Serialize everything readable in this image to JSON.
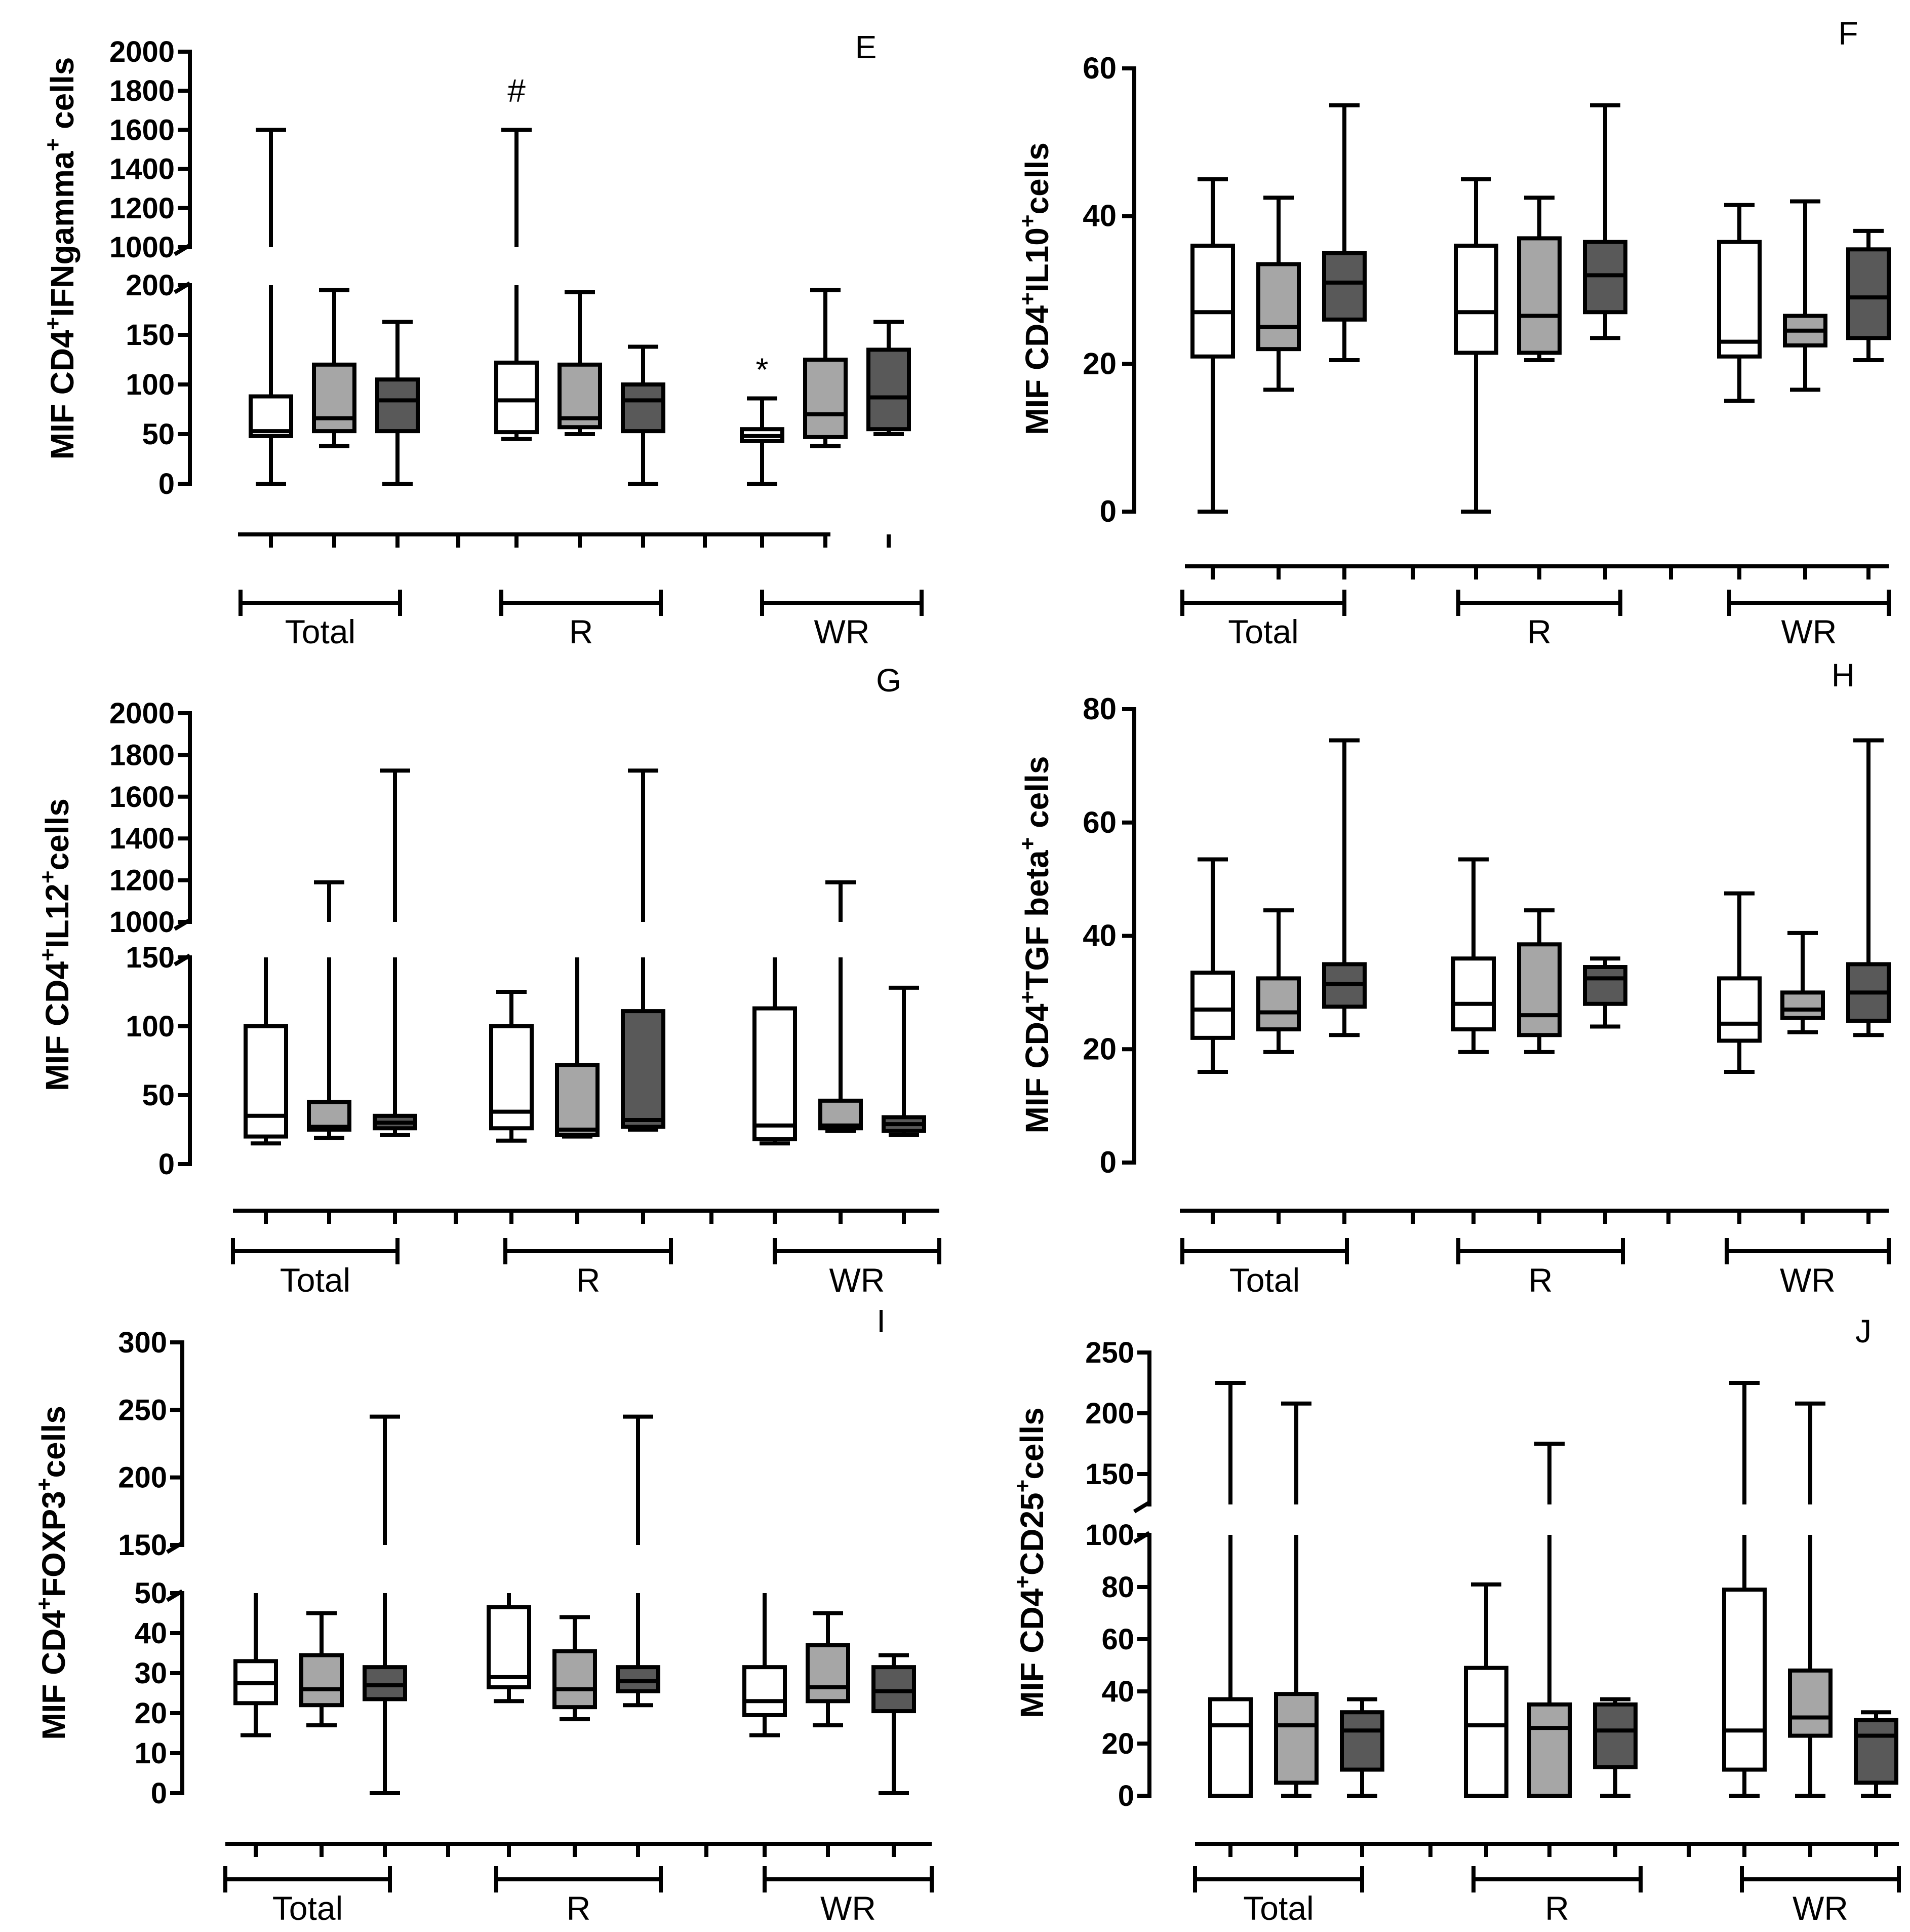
{
  "figure": {
    "colors": {
      "white_box": "#ffffff",
      "gray_box": "#a6a6a6",
      "dark_box": "#595959",
      "line": "#000000"
    },
    "group_labels": [
      "Total",
      "R",
      "WR"
    ],
    "box_fills": [
      "white",
      "gray",
      "dark"
    ]
  },
  "chart_data": [
    {
      "type": "box",
      "panel_letter": "E",
      "ylabel_parts": [
        "MIF CD4",
        "+",
        "IFNgamma",
        "+",
        " cells"
      ],
      "y_broken": true,
      "lower_range": [
        0,
        200
      ],
      "lower_ticks": [
        0,
        50,
        100,
        150,
        200
      ],
      "upper_range": [
        1000,
        2000
      ],
      "upper_ticks": [
        1000,
        1200,
        1400,
        1600,
        1800,
        2000
      ],
      "groups": [
        "Total",
        "R",
        "WR"
      ],
      "boxes": [
        {
          "group": "Total",
          "fill": "white",
          "min": 0,
          "q1": 48,
          "median": 53,
          "q3": 88,
          "max": 1600
        },
        {
          "group": "Total",
          "fill": "gray",
          "min": 38,
          "q1": 53,
          "median": 66,
          "q3": 120,
          "max": 195
        },
        {
          "group": "Total",
          "fill": "dark",
          "min": 0,
          "q1": 53,
          "median": 84,
          "q3": 105,
          "max": 163
        },
        {
          "group": "R",
          "fill": "white",
          "min": 45,
          "q1": 52,
          "median": 84,
          "q3": 122,
          "max": 1600
        },
        {
          "group": "R",
          "fill": "gray",
          "min": 50,
          "q1": 57,
          "median": 66,
          "q3": 120,
          "max": 193
        },
        {
          "group": "R",
          "fill": "dark",
          "min": 0,
          "q1": 53,
          "median": 84,
          "q3": 100,
          "max": 138
        },
        {
          "group": "WR",
          "fill": "white",
          "min": 0,
          "q1": 43,
          "median": 48,
          "q3": 55,
          "max": 86
        },
        {
          "group": "WR",
          "fill": "gray",
          "min": 38,
          "q1": 47,
          "median": 70,
          "q3": 125,
          "max": 195
        },
        {
          "group": "WR",
          "fill": "dark",
          "min": 50,
          "q1": 55,
          "median": 87,
          "q3": 135,
          "max": 163
        }
      ],
      "annotations": [
        {
          "text": "#",
          "box_index": 3,
          "y": 1800,
          "axis": "upper"
        },
        {
          "text": "*",
          "box_index": 6,
          "y": 115,
          "axis": "lower"
        }
      ]
    },
    {
      "type": "box",
      "panel_letter": "F",
      "ylabel_parts": [
        "MIF CD4",
        "+",
        "IL10",
        "+",
        "cells"
      ],
      "y_broken": false,
      "ylim": [
        0,
        60
      ],
      "yticks": [
        0,
        20,
        40,
        60
      ],
      "groups": [
        "Total",
        "R",
        "WR"
      ],
      "boxes": [
        {
          "group": "Total",
          "fill": "white",
          "min": 0,
          "q1": 21,
          "median": 27,
          "q3": 36,
          "max": 45
        },
        {
          "group": "Total",
          "fill": "gray",
          "min": 16.5,
          "q1": 22,
          "median": 25,
          "q3": 33.5,
          "max": 42.5
        },
        {
          "group": "Total",
          "fill": "dark",
          "min": 20.5,
          "q1": 26,
          "median": 31,
          "q3": 35,
          "max": 55
        },
        {
          "group": "R",
          "fill": "white",
          "min": 0,
          "q1": 21.5,
          "median": 27,
          "q3": 36,
          "max": 45
        },
        {
          "group": "R",
          "fill": "gray",
          "min": 20.5,
          "q1": 21.5,
          "median": 26.5,
          "q3": 37,
          "max": 42.5
        },
        {
          "group": "R",
          "fill": "dark",
          "min": 23.5,
          "q1": 27,
          "median": 32,
          "q3": 36.5,
          "max": 55
        },
        {
          "group": "WR",
          "fill": "white",
          "min": 15,
          "q1": 21,
          "median": 23,
          "q3": 36.5,
          "max": 41.5
        },
        {
          "group": "WR",
          "fill": "gray",
          "min": 16.5,
          "q1": 22.5,
          "median": 24.5,
          "q3": 26.5,
          "max": 42
        },
        {
          "group": "WR",
          "fill": "dark",
          "min": 20.5,
          "q1": 23.5,
          "median": 29,
          "q3": 35.5,
          "max": 38
        }
      ],
      "annotations": []
    },
    {
      "type": "box",
      "panel_letter": "G",
      "ylabel_parts": [
        "MIF CD4",
        "+",
        "IL12",
        "+",
        "cells"
      ],
      "y_broken": true,
      "lower_range": [
        0,
        150
      ],
      "lower_ticks": [
        0,
        50,
        100,
        150
      ],
      "upper_range": [
        1000,
        2000
      ],
      "upper_ticks": [
        1000,
        1200,
        1400,
        1600,
        1800,
        2000
      ],
      "groups": [
        "Total",
        "R",
        "WR"
      ],
      "boxes": [
        {
          "group": "Total",
          "fill": "white",
          "min": 15,
          "q1": 20,
          "median": 35,
          "q3": 100,
          "max": 150
        },
        {
          "group": "Total",
          "fill": "gray",
          "min": 19,
          "q1": 25,
          "median": 27,
          "q3": 45,
          "max": 1190
        },
        {
          "group": "Total",
          "fill": "dark",
          "min": 21,
          "q1": 26,
          "median": 30,
          "q3": 35,
          "max": 1725
        },
        {
          "group": "R",
          "fill": "white",
          "min": 17,
          "q1": 26,
          "median": 38,
          "q3": 100,
          "max": 125
        },
        {
          "group": "R",
          "fill": "gray",
          "min": 20,
          "q1": 21,
          "median": 25,
          "q3": 72,
          "max": 150
        },
        {
          "group": "R",
          "fill": "dark",
          "min": 25,
          "q1": 27,
          "median": 32,
          "q3": 111,
          "max": 1725
        },
        {
          "group": "WR",
          "fill": "white",
          "min": 15,
          "q1": 18,
          "median": 28,
          "q3": 113,
          "max": 150
        },
        {
          "group": "WR",
          "fill": "gray",
          "min": 24,
          "q1": 26,
          "median": 28,
          "q3": 46,
          "max": 1190
        },
        {
          "group": "WR",
          "fill": "dark",
          "min": 21,
          "q1": 24,
          "median": 29,
          "q3": 34,
          "max": 128
        }
      ],
      "annotations": []
    },
    {
      "type": "box",
      "panel_letter": "H",
      "ylabel_parts": [
        "MIF CD4",
        "+",
        "TGF beta",
        "+",
        " cells"
      ],
      "y_broken": false,
      "ylim": [
        0,
        80
      ],
      "yticks": [
        0,
        20,
        40,
        60,
        80
      ],
      "groups": [
        "Total",
        "R",
        "WR"
      ],
      "boxes": [
        {
          "group": "Total",
          "fill": "white",
          "min": 16,
          "q1": 22,
          "median": 27,
          "q3": 33.5,
          "max": 53.5
        },
        {
          "group": "Total",
          "fill": "gray",
          "min": 19.5,
          "q1": 23.5,
          "median": 26.5,
          "q3": 32.5,
          "max": 44.5
        },
        {
          "group": "Total",
          "fill": "dark",
          "min": 22.5,
          "q1": 27.5,
          "median": 31.5,
          "q3": 35,
          "max": 74.5
        },
        {
          "group": "R",
          "fill": "white",
          "min": 19.5,
          "q1": 23.5,
          "median": 28,
          "q3": 36,
          "max": 53.5
        },
        {
          "group": "R",
          "fill": "gray",
          "min": 19.5,
          "q1": 22.5,
          "median": 26,
          "q3": 38.5,
          "max": 44.5
        },
        {
          "group": "R",
          "fill": "dark",
          "min": 24,
          "q1": 28,
          "median": 32.5,
          "q3": 34.5,
          "max": 36
        },
        {
          "group": "WR",
          "fill": "white",
          "min": 16,
          "q1": 21.5,
          "median": 24.5,
          "q3": 32.5,
          "max": 47.5
        },
        {
          "group": "WR",
          "fill": "gray",
          "min": 23,
          "q1": 25.5,
          "median": 27,
          "q3": 30,
          "max": 40.5
        },
        {
          "group": "WR",
          "fill": "dark",
          "min": 22.5,
          "q1": 25,
          "median": 30,
          "q3": 35,
          "max": 74.5
        }
      ],
      "annotations": []
    },
    {
      "type": "box",
      "panel_letter": "I",
      "ylabel_parts": [
        "MIF CD4",
        "+",
        "FOXP3",
        "+",
        "cells"
      ],
      "y_broken": true,
      "lower_range": [
        0,
        50
      ],
      "lower_ticks": [
        0,
        10,
        20,
        30,
        40,
        50
      ],
      "upper_range": [
        150,
        300
      ],
      "upper_ticks": [
        150,
        200,
        250,
        300
      ],
      "groups": [
        "Total",
        "R",
        "WR"
      ],
      "boxes": [
        {
          "group": "Total",
          "fill": "white",
          "min": 14.5,
          "q1": 22.5,
          "median": 27.5,
          "q3": 33,
          "max": 50
        },
        {
          "group": "Total",
          "fill": "gray",
          "min": 17,
          "q1": 22,
          "median": 26,
          "q3": 34.5,
          "max": 45
        },
        {
          "group": "Total",
          "fill": "dark",
          "min": 0,
          "q1": 23.5,
          "median": 27,
          "q3": 31.5,
          "max": 245
        },
        {
          "group": "R",
          "fill": "white",
          "min": 23,
          "q1": 26.5,
          "median": 29,
          "q3": 46.5,
          "max": 50
        },
        {
          "group": "R",
          "fill": "gray",
          "min": 18.5,
          "q1": 21.5,
          "median": 26,
          "q3": 35.5,
          "max": 44
        },
        {
          "group": "R",
          "fill": "dark",
          "min": 22,
          "q1": 25.5,
          "median": 28,
          "q3": 31.5,
          "max": 245
        },
        {
          "group": "WR",
          "fill": "white",
          "min": 14.5,
          "q1": 19.5,
          "median": 23,
          "q3": 31.5,
          "max": 50
        },
        {
          "group": "WR",
          "fill": "gray",
          "min": 17,
          "q1": 23,
          "median": 26.5,
          "q3": 37,
          "max": 45
        },
        {
          "group": "WR",
          "fill": "dark",
          "min": 0,
          "q1": 20.5,
          "median": 25.5,
          "q3": 31.5,
          "max": 34.5
        }
      ],
      "annotations": []
    },
    {
      "type": "box",
      "panel_letter": "J",
      "ylabel_parts": [
        "MIF CD4",
        "+",
        "CD25",
        "+",
        "cells"
      ],
      "y_broken": true,
      "lower_range": [
        0,
        100
      ],
      "lower_ticks": [
        0,
        20,
        40,
        60,
        80,
        100
      ],
      "upper_range": [
        125,
        250
      ],
      "upper_ticks": [
        150,
        200,
        250
      ],
      "groups": [
        "Total",
        "R",
        "WR"
      ],
      "boxes": [
        {
          "group": "Total",
          "fill": "white",
          "min": 0,
          "q1": 0,
          "median": 27,
          "q3": 37,
          "max": 225
        },
        {
          "group": "Total",
          "fill": "gray",
          "min": 0,
          "q1": 5,
          "median": 27,
          "q3": 39,
          "max": 208
        },
        {
          "group": "Total",
          "fill": "dark",
          "min": 0,
          "q1": 10,
          "median": 25,
          "q3": 32,
          "max": 37
        },
        {
          "group": "R",
          "fill": "white",
          "min": 0,
          "q1": 0,
          "median": 27,
          "q3": 49,
          "max": 81
        },
        {
          "group": "R",
          "fill": "gray",
          "min": 0,
          "q1": 0,
          "median": 26,
          "q3": 35,
          "max": 175
        },
        {
          "group": "R",
          "fill": "dark",
          "min": 0,
          "q1": 11,
          "median": 25,
          "q3": 35,
          "max": 37
        },
        {
          "group": "WR",
          "fill": "white",
          "min": 0,
          "q1": 10,
          "median": 25,
          "q3": 79,
          "max": 225
        },
        {
          "group": "WR",
          "fill": "gray",
          "min": 0,
          "q1": 23,
          "median": 30,
          "q3": 48,
          "max": 208
        },
        {
          "group": "WR",
          "fill": "dark",
          "min": 0,
          "q1": 5,
          "median": 23,
          "q3": 29,
          "max": 32
        }
      ],
      "annotations": []
    }
  ]
}
